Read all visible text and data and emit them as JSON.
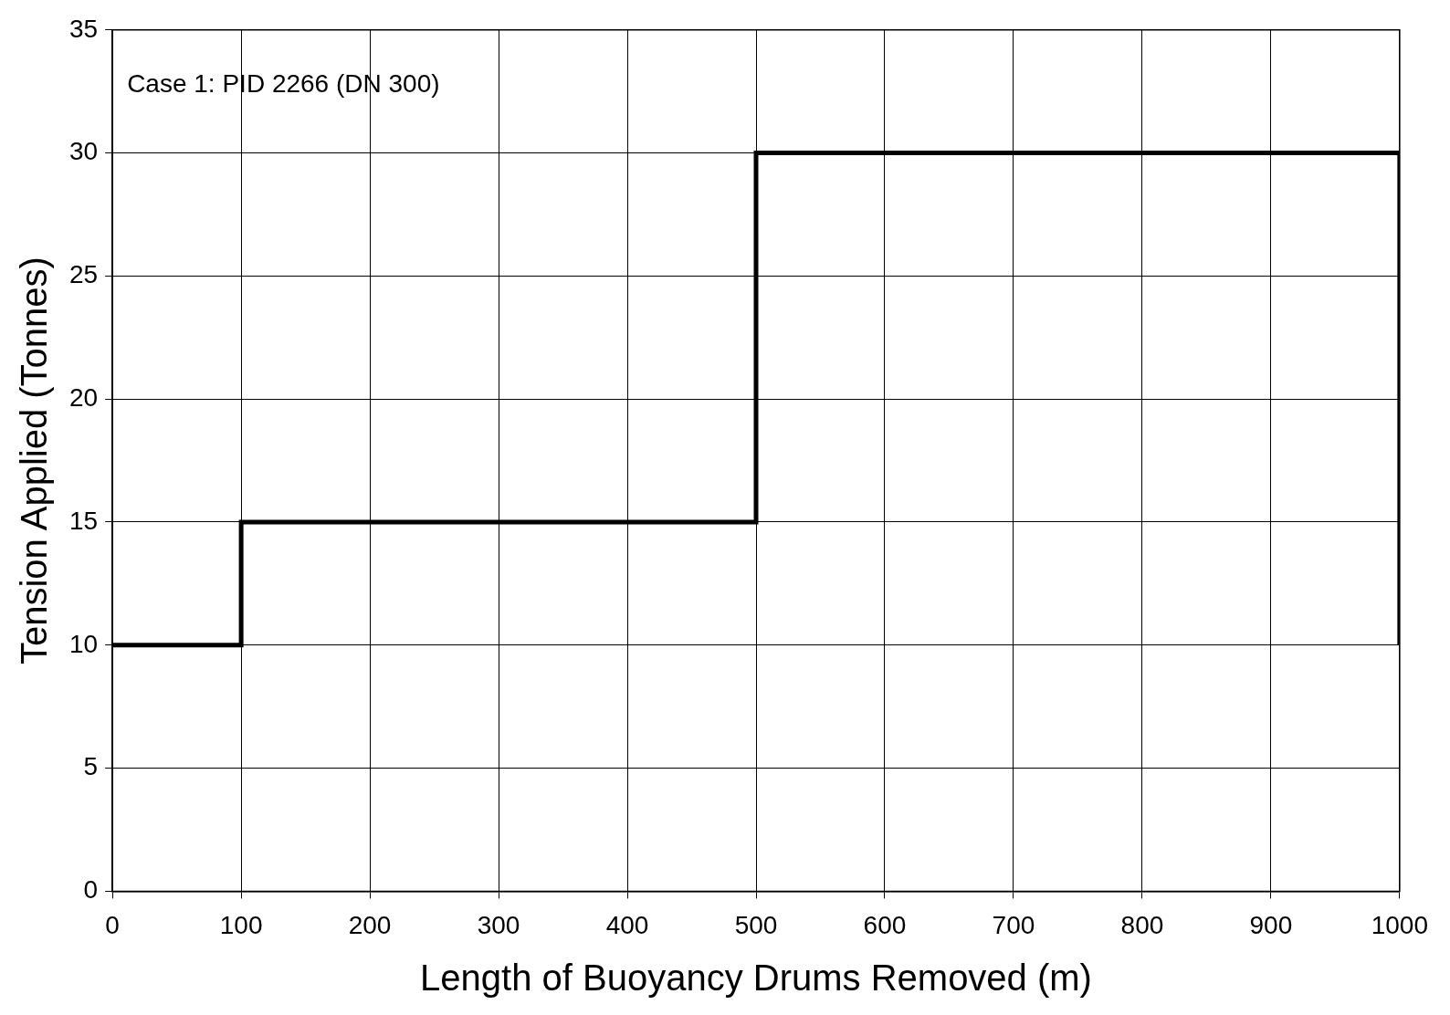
{
  "chart_data": {
    "type": "line",
    "xlabel": "Length of Buoyancy Drums Removed (m)",
    "ylabel": "Tension Applied (Tonnes)",
    "annotations": [
      "Case 1: PID 2266 (DN 300)"
    ],
    "x": [
      0,
      100,
      100,
      500,
      500,
      1000,
      1000
    ],
    "series": [
      {
        "color": "#000000",
        "values": [
          10,
          10,
          15,
          15,
          30,
          30,
          10
        ]
      }
    ],
    "xlim": [
      0,
      1000
    ],
    "ylim": [
      0,
      35
    ],
    "xticks": [
      0,
      100,
      200,
      300,
      400,
      500,
      600,
      700,
      800,
      900,
      1000
    ],
    "yticks": [
      0,
      5,
      10,
      15,
      20,
      25,
      30,
      35
    ],
    "grid": true,
    "legend": false
  }
}
